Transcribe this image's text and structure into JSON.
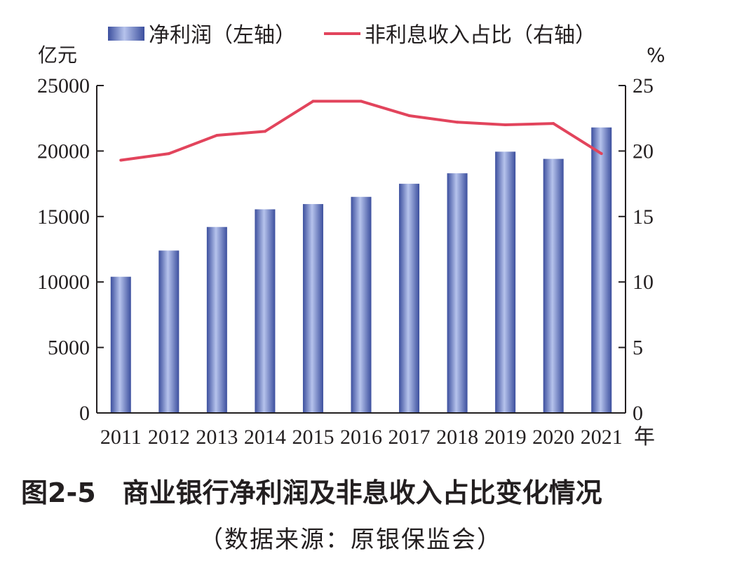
{
  "chart_data": {
    "type": "bar",
    "categories": [
      "2011",
      "2012",
      "2013",
      "2014",
      "2015",
      "2016",
      "2017",
      "2018",
      "2019",
      "2020",
      "2021"
    ],
    "series": [
      {
        "name": "净利润（左轴）",
        "type": "bar",
        "axis": "left",
        "values": [
          10400,
          12400,
          14200,
          15550,
          15950,
          16500,
          17500,
          18300,
          19950,
          19400,
          21800
        ]
      },
      {
        "name": "非利息收入占比（右轴）",
        "type": "line",
        "axis": "right",
        "values": [
          19.3,
          19.8,
          21.2,
          21.5,
          23.8,
          23.8,
          22.7,
          22.2,
          22.0,
          22.1,
          19.8
        ]
      }
    ],
    "left_axis": {
      "unit": "亿元",
      "ylim": [
        0,
        25000
      ],
      "ticks": [
        0,
        5000,
        10000,
        15000,
        20000,
        25000
      ]
    },
    "right_axis": {
      "unit": "%",
      "ylim": [
        0,
        25
      ],
      "ticks": [
        0,
        5,
        10,
        15,
        20,
        25
      ]
    },
    "x_unit": "年",
    "legend_position": "top",
    "colors": {
      "bar": "#4a5fae",
      "bar_light": "#a9b8e6",
      "line": "#e2445c",
      "axis": "#231f20"
    }
  },
  "caption": {
    "title": "图2-5　商业银行净利润及非息收入占比变化情况",
    "source": "（数据来源：原银保监会）"
  }
}
